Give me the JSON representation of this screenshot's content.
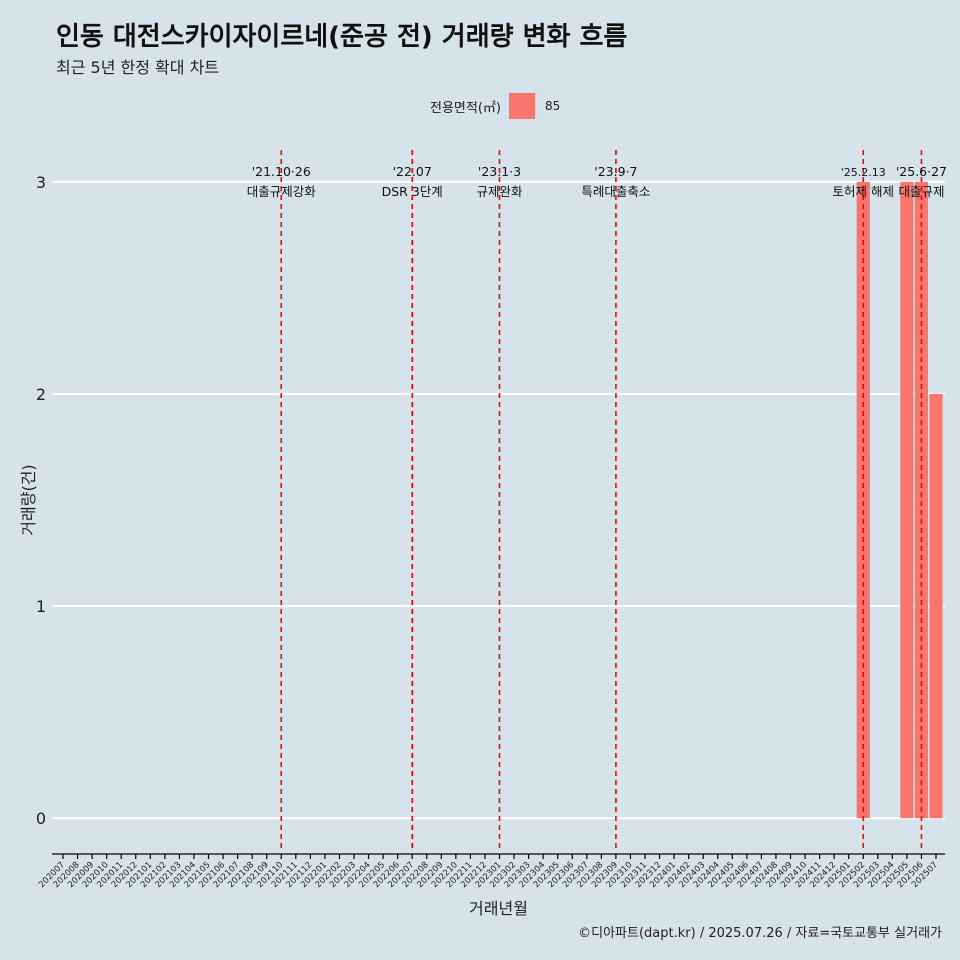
{
  "title": "인동 대전스카이자이르네(준공 전) 거래량 변화 흐름",
  "subtitle": "최근 5년 한정 확대 차트",
  "legend": {
    "title": "전용면적(㎡)",
    "value": "85",
    "color": "#f8766d"
  },
  "caption": "©디아파트(dapt.kr) / 2025.07.26 / 자료=국토교통부 실거래가",
  "chart_data": {
    "type": "bar",
    "title": "인동 대전스카이자이르네(준공 전) 거래량 변화 흐름",
    "xlabel": "거래년월",
    "ylabel": "거래량(건)",
    "ylim": [
      -0.15,
      3.15
    ],
    "yticks": [
      0,
      1,
      2,
      3
    ],
    "categories": [
      "202007",
      "202008",
      "202009",
      "202010",
      "202011",
      "202012",
      "202101",
      "202102",
      "202103",
      "202104",
      "202105",
      "202106",
      "202107",
      "202108",
      "202109",
      "202110",
      "202111",
      "202112",
      "202201",
      "202202",
      "202203",
      "202204",
      "202205",
      "202206",
      "202207",
      "202208",
      "202209",
      "202210",
      "202211",
      "202212",
      "202301",
      "202302",
      "202303",
      "202304",
      "202305",
      "202306",
      "202307",
      "202308",
      "202309",
      "202310",
      "202311",
      "202312",
      "202401",
      "202402",
      "202403",
      "202404",
      "202405",
      "202406",
      "202407",
      "202408",
      "202409",
      "202410",
      "202411",
      "202412",
      "202501",
      "202502",
      "202503",
      "202504",
      "202505",
      "202506",
      "202507"
    ],
    "series": [
      {
        "name": "85",
        "color": "#f8766d",
        "points": [
          {
            "x": "202502",
            "y": 3
          },
          {
            "x": "202505",
            "y": 3
          },
          {
            "x": "202506",
            "y": 3
          },
          {
            "x": "202507",
            "y": 2
          }
        ]
      }
    ],
    "events": [
      {
        "x": "202110",
        "date": "'21.10·26",
        "label": "대출규제강화"
      },
      {
        "x": "202207",
        "date": "'22.07",
        "label": "DSR 3단계"
      },
      {
        "x": "202301",
        "date": "'23.1·3",
        "label": "규제완화"
      },
      {
        "x": "202309",
        "date": "'23.9·7",
        "label": "특례대출축소"
      },
      {
        "x": "202502",
        "date": "'25.2.13",
        "label": "토허제 해제"
      },
      {
        "x": "202506",
        "date": "'25.6·27",
        "label": "대출규제"
      }
    ]
  }
}
